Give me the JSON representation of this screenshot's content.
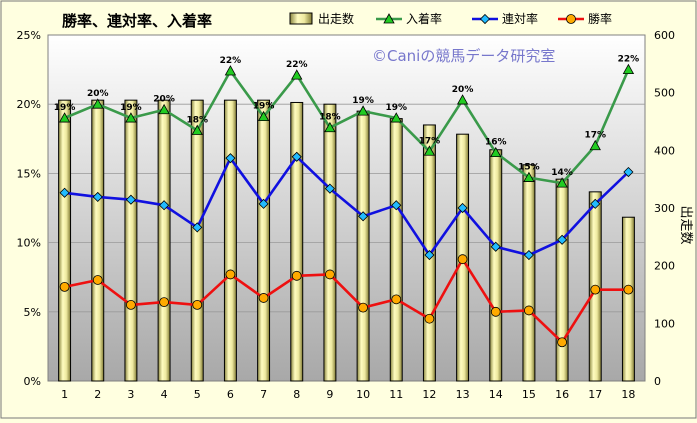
{
  "chart_data": {
    "type": "bar+line",
    "title": "勝率、連対率、入着率",
    "watermark": "©Caniの競馬データ研究室",
    "categories": [
      "1",
      "2",
      "3",
      "4",
      "5",
      "6",
      "7",
      "8",
      "9",
      "10",
      "11",
      "12",
      "13",
      "14",
      "15",
      "16",
      "17",
      "18"
    ],
    "y_left": {
      "ticks": [
        "0%",
        "5%",
        "10%",
        "15%",
        "20%",
        "25%"
      ],
      "range": [
        0,
        25
      ]
    },
    "y_right": {
      "label": "出走数",
      "ticks": [
        "0",
        "100",
        "200",
        "300",
        "400",
        "500",
        "600"
      ],
      "range": [
        0,
        600
      ]
    },
    "bar_series": {
      "name": "出走数",
      "color": "#e8e4a0",
      "values": [
        487,
        487,
        487,
        487,
        487,
        487,
        487,
        483,
        480,
        468,
        455,
        444,
        428,
        401,
        375,
        350,
        328,
        284
      ]
    },
    "line_series": [
      {
        "name": "入着率",
        "color": "#3a9a4a",
        "marker": "triangle",
        "values": [
          19,
          20,
          19,
          19.6,
          18.1,
          22.4,
          19.1,
          22.1,
          18.3,
          19.5,
          19,
          16.6,
          20.3,
          16.5,
          14.7,
          14.3,
          17,
          22.5
        ],
        "labels": [
          "19%",
          "20%",
          "19%",
          "20%",
          "18%",
          "22%",
          "19%",
          "22%",
          "18%",
          "19%",
          "19%",
          "17%",
          "20%",
          "16%",
          "15%",
          "14%",
          "17%",
          "22%"
        ]
      },
      {
        "name": "連対率",
        "color": "#1010e0",
        "marker": "diamond",
        "values": [
          13.6,
          13.3,
          13.1,
          12.7,
          11.1,
          16.1,
          12.8,
          16.2,
          13.9,
          11.9,
          12.7,
          9.1,
          12.5,
          9.7,
          9.1,
          10.2,
          12.8,
          15.1
        ]
      },
      {
        "name": "勝率",
        "color": "#ee1010",
        "marker": "circle",
        "values": [
          6.8,
          7.3,
          5.5,
          5.7,
          5.5,
          7.7,
          6.0,
          7.6,
          7.7,
          5.3,
          5.9,
          4.5,
          8.8,
          5.0,
          5.1,
          2.8,
          6.6,
          6.6
        ]
      }
    ]
  }
}
